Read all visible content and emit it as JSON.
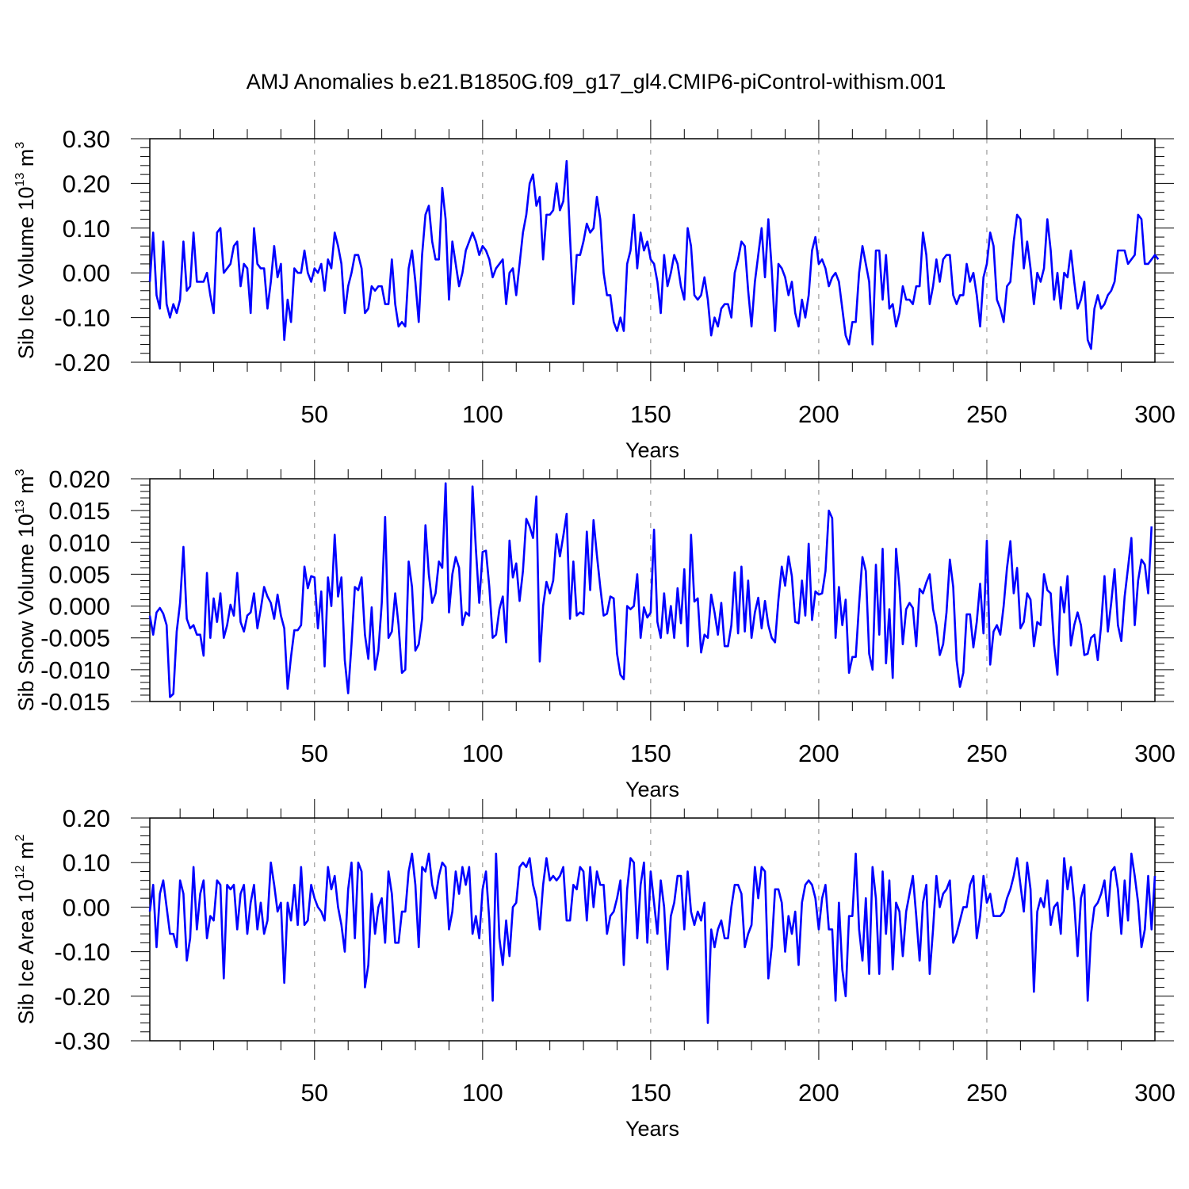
{
  "title": "AMJ Anomalies b.e21.B1850G.f09_g17_gl4.CMIP6-piControl-withism.001",
  "colors": {
    "series": "#0000ff",
    "axis": "#000000",
    "grid": "#888888"
  },
  "chart_data": [
    {
      "type": "line",
      "name": "ice-volume",
      "ylabel": {
        "prefix": "Sib Ice Volume 10",
        "exp1": "13",
        "mid": " m",
        "exp2": "3"
      },
      "xlabel": "Years",
      "xlim": [
        1,
        300
      ],
      "ylim": [
        -0.2,
        0.3
      ],
      "xticks": [
        50,
        100,
        150,
        200,
        250,
        300
      ],
      "xtick_labels": [
        "50",
        "100",
        "150",
        "200",
        "250",
        "300"
      ],
      "yticks": [
        -0.2,
        -0.1,
        0.0,
        0.1,
        0.2,
        0.3
      ],
      "ytick_labels": [
        "-0.20",
        "-0.10",
        "0.00",
        "0.10",
        "0.20",
        "0.30"
      ],
      "grid": "vertical-dashed",
      "x_start": 1,
      "values": [
        -0.02,
        0.09,
        -0.05,
        -0.08,
        0.07,
        -0.07,
        -0.1,
        -0.07,
        -0.09,
        -0.06,
        0.07,
        -0.04,
        -0.03,
        0.09,
        -0.02,
        -0.02,
        -0.02,
        0.0,
        -0.05,
        -0.09,
        0.09,
        0.1,
        0.0,
        0.01,
        0.02,
        0.06,
        0.07,
        -0.03,
        0.02,
        0.01,
        -0.09,
        0.1,
        0.02,
        0.01,
        0.01,
        -0.08,
        -0.02,
        0.06,
        -0.01,
        0.02,
        -0.15,
        -0.06,
        -0.11,
        0.01,
        0.0,
        0.0,
        0.05,
        0.0,
        -0.02,
        0.01,
        0.0,
        0.02,
        -0.04,
        0.03,
        0.01,
        0.09,
        0.06,
        0.02,
        -0.09,
        -0.03,
        0.0,
        0.04,
        0.04,
        0.01,
        -0.09,
        -0.08,
        -0.03,
        -0.04,
        -0.03,
        -0.03,
        -0.07,
        -0.07,
        0.03,
        -0.07,
        -0.12,
        -0.11,
        -0.12,
        0.01,
        0.05,
        -0.02,
        -0.11,
        0.04,
        0.13,
        0.15,
        0.07,
        0.03,
        0.03,
        0.19,
        0.12,
        -0.06,
        0.07,
        0.02,
        -0.03,
        0.0,
        0.05,
        0.07,
        0.09,
        0.07,
        0.04,
        0.06,
        0.05,
        0.03,
        -0.01,
        0.01,
        0.02,
        0.03,
        -0.07,
        0.0,
        0.01,
        -0.05,
        0.02,
        0.09,
        0.13,
        0.2,
        0.22,
        0.15,
        0.17,
        0.03,
        0.13,
        0.13,
        0.14,
        0.2,
        0.14,
        0.16,
        0.25,
        0.08,
        -0.07,
        0.04,
        0.04,
        0.07,
        0.11,
        0.09,
        0.1,
        0.17,
        0.12,
        0.0,
        -0.05,
        -0.05,
        -0.11,
        -0.13,
        -0.1,
        -0.13,
        0.02,
        0.05,
        0.13,
        0.01,
        0.09,
        0.05,
        0.07,
        0.03,
        0.02,
        -0.02,
        -0.09,
        0.04,
        -0.03,
        0.0,
        0.04,
        0.02,
        -0.03,
        -0.06,
        0.1,
        0.06,
        -0.05,
        -0.06,
        -0.05,
        -0.01,
        -0.06,
        -0.14,
        -0.1,
        -0.12,
        -0.08,
        -0.07,
        -0.07,
        -0.1,
        0.0,
        0.03,
        0.07,
        0.06,
        -0.04,
        -0.12,
        -0.02,
        0.04,
        0.1,
        -0.01,
        0.12,
        0.01,
        -0.13,
        0.02,
        0.01,
        -0.01,
        -0.05,
        -0.02,
        -0.09,
        -0.12,
        -0.06,
        -0.1,
        -0.05,
        0.05,
        0.08,
        0.02,
        0.03,
        0.01,
        -0.03,
        -0.01,
        0.0,
        -0.02,
        -0.08,
        -0.14,
        -0.16,
        -0.11,
        -0.11,
        0.0,
        0.06,
        0.02,
        -0.02,
        -0.16,
        0.05,
        0.05,
        -0.06,
        0.04,
        -0.08,
        -0.07,
        -0.12,
        -0.09,
        -0.03,
        -0.06,
        -0.06,
        -0.07,
        -0.03,
        -0.03,
        0.09,
        0.04,
        -0.07,
        -0.03,
        0.03,
        -0.02,
        0.03,
        0.04,
        0.04,
        -0.05,
        -0.07,
        -0.05,
        -0.05,
        0.02,
        -0.02,
        0.0,
        -0.05,
        -0.12,
        -0.01,
        0.02,
        0.09,
        0.06,
        -0.06,
        -0.08,
        -0.11,
        -0.03,
        -0.02,
        0.07,
        0.13,
        0.12,
        0.01,
        0.07,
        0.01,
        -0.07,
        0.0,
        -0.02,
        0.01,
        0.12,
        0.05,
        -0.06,
        0.0,
        -0.08,
        0.0,
        -0.01,
        0.05,
        -0.02,
        -0.08,
        -0.06,
        -0.02,
        -0.15,
        -0.17,
        -0.08,
        -0.05,
        -0.08,
        -0.07,
        -0.05,
        -0.04,
        -0.02,
        0.05,
        0.05,
        0.05,
        0.02,
        0.03,
        0.04,
        0.13,
        0.12,
        0.02,
        0.02,
        0.03,
        0.04,
        0.03
      ]
    },
    {
      "type": "line",
      "name": "snow-volume",
      "ylabel": {
        "prefix": "Sib Snow Volume 10",
        "exp1": "13",
        "mid": " m",
        "exp2": "3"
      },
      "xlabel": "Years",
      "xlim": [
        1,
        300
      ],
      "ylim": [
        -0.015,
        0.02
      ],
      "xticks": [
        50,
        100,
        150,
        200,
        250,
        300
      ],
      "xtick_labels": [
        "50",
        "100",
        "150",
        "200",
        "250",
        "300"
      ],
      "yticks": [
        -0.015,
        -0.01,
        -0.005,
        0.0,
        0.005,
        0.01,
        0.015,
        0.02
      ],
      "ytick_labels": [
        "-0.015",
        "-0.010",
        "-0.005",
        "0.000",
        "0.005",
        "0.010",
        "0.015",
        "0.020"
      ],
      "grid": "vertical-dashed",
      "x_start": 1,
      "values": [
        -0.0015,
        -0.0045,
        -0.001,
        -0.0003,
        -0.0012,
        -0.003,
        -0.0143,
        -0.0138,
        -0.004,
        0.0005,
        0.0093,
        -0.002,
        -0.0035,
        -0.003,
        -0.0045,
        -0.0045,
        -0.0078,
        0.0052,
        -0.005,
        0.0012,
        -0.0025,
        0.002,
        -0.005,
        -0.003,
        0.0002,
        -0.0015,
        0.0052,
        -0.0025,
        -0.004,
        -0.0015,
        -0.001,
        0.002,
        -0.0035,
        -0.0005,
        0.003,
        0.0015,
        0.0005,
        -0.002,
        0.0018,
        -0.0015,
        -0.0035,
        -0.013,
        -0.008,
        -0.0038,
        -0.0038,
        -0.003,
        0.0062,
        0.0028,
        0.0047,
        0.0045,
        -0.0035,
        0.0023,
        -0.0095,
        0.0045,
        0.0,
        0.0112,
        0.0015,
        0.0045,
        -0.0085,
        -0.0137,
        -0.006,
        0.003,
        0.0025,
        0.0045,
        -0.0045,
        -0.0083,
        -0.0002,
        -0.01,
        -0.007,
        0.0005,
        0.014,
        -0.005,
        -0.004,
        0.002,
        -0.003,
        -0.0105,
        -0.01,
        0.007,
        0.003,
        -0.007,
        -0.006,
        -0.002,
        0.0127,
        0.005,
        0.0005,
        0.002,
        0.007,
        0.006,
        0.0193,
        -0.001,
        0.005,
        0.0077,
        0.006,
        -0.003,
        -0.001,
        -0.0015,
        0.0188,
        0.009,
        0.0005,
        0.0085,
        0.0087,
        0.003,
        -0.005,
        -0.0045,
        -0.0005,
        0.0015,
        -0.0057,
        0.0103,
        0.0045,
        0.0067,
        0.0008,
        0.0055,
        0.0137,
        0.0125,
        0.0107,
        0.0172,
        -0.0087,
        0.0,
        0.0038,
        0.002,
        0.004,
        0.0113,
        0.0078,
        0.011,
        0.0145,
        -0.002,
        0.007,
        -0.0015,
        -0.001,
        -0.0013,
        0.0117,
        0.0025,
        0.0135,
        0.008,
        0.003,
        -0.0015,
        -0.0012,
        0.0015,
        0.0012,
        -0.0075,
        -0.0108,
        -0.0115,
        0.0,
        -0.0005,
        0.0,
        0.005,
        -0.005,
        -0.0002,
        -0.0018,
        -0.001,
        0.012,
        -0.0025,
        -0.005,
        0.002,
        -0.0043,
        0.0,
        -0.005,
        0.0028,
        -0.0027,
        0.0058,
        -0.0063,
        0.0112,
        0.0007,
        0.0012,
        -0.0073,
        -0.0045,
        -0.005,
        0.0018,
        -0.001,
        -0.0045,
        0.0005,
        -0.0063,
        -0.0063,
        -0.003,
        0.0053,
        -0.0043,
        0.0062,
        -0.004,
        0.004,
        -0.005,
        -0.001,
        0.0013,
        -0.0035,
        0.0008,
        -0.003,
        -0.005,
        -0.0057,
        0.001,
        0.0062,
        0.0032,
        0.0078,
        0.0047,
        -0.0025,
        -0.0027,
        0.004,
        -0.0015,
        0.0098,
        -0.0022,
        0.0023,
        0.0018,
        0.002,
        0.0055,
        0.015,
        0.0138,
        -0.005,
        0.003,
        -0.003,
        0.001,
        -0.0105,
        -0.008,
        -0.008,
        0.0003,
        0.0077,
        0.0055,
        -0.0075,
        -0.01,
        0.0065,
        -0.0045,
        0.009,
        -0.009,
        -0.0005,
        -0.0113,
        0.009,
        0.003,
        -0.006,
        -0.0005,
        0.0005,
        -0.0003,
        -0.0063,
        0.0027,
        0.002,
        0.0037,
        0.005,
        -0.0005,
        -0.003,
        -0.0077,
        -0.006,
        -0.001,
        0.0073,
        0.003,
        -0.0085,
        -0.0127,
        -0.0105,
        -0.0013,
        -0.0013,
        -0.0065,
        -0.0025,
        0.0035,
        -0.0043,
        0.0103,
        -0.0092,
        -0.004,
        -0.003,
        -0.0045,
        0.0,
        0.006,
        0.0102,
        0.002,
        0.006,
        -0.0035,
        -0.0025,
        0.002,
        0.001,
        -0.0063,
        -0.0025,
        -0.003,
        0.005,
        0.0025,
        0.002,
        -0.006,
        -0.0108,
        0.003,
        -0.001,
        0.0047,
        -0.0062,
        -0.003,
        -0.001,
        -0.003,
        -0.0077,
        -0.0075,
        -0.005,
        -0.0045,
        -0.0085,
        -0.003,
        0.0047,
        -0.004,
        0.0005,
        0.0058,
        -0.003,
        -0.0055,
        0.0015,
        0.006,
        0.0107,
        -0.003,
        0.004,
        0.0073,
        0.0065,
        0.002,
        0.0125
      ]
    },
    {
      "type": "line",
      "name": "ice-area",
      "ylabel": {
        "prefix": "Sib Ice Area 10",
        "exp1": "12",
        "mid": " m",
        "exp2": "2"
      },
      "xlabel": "Years",
      "xlim": [
        1,
        300
      ],
      "ylim": [
        -0.3,
        0.2
      ],
      "xticks": [
        50,
        100,
        150,
        200,
        250,
        300
      ],
      "xtick_labels": [
        "50",
        "100",
        "150",
        "200",
        "250",
        "300"
      ],
      "yticks": [
        -0.3,
        -0.2,
        -0.1,
        0.0,
        0.1,
        0.2
      ],
      "ytick_labels": [
        "-0.30",
        "-0.20",
        "-0.10",
        "0.00",
        "0.10",
        "0.20"
      ],
      "grid": "vertical-dashed",
      "x_start": 1,
      "values": [
        -0.01,
        0.05,
        -0.09,
        0.03,
        0.06,
        0.0,
        -0.06,
        -0.06,
        -0.09,
        0.06,
        0.03,
        -0.12,
        -0.07,
        0.09,
        -0.05,
        0.03,
        0.06,
        -0.07,
        -0.02,
        -0.03,
        0.06,
        0.05,
        -0.16,
        0.05,
        0.04,
        0.05,
        -0.05,
        0.03,
        0.05,
        -0.06,
        0.01,
        0.05,
        -0.05,
        0.01,
        -0.06,
        -0.03,
        0.1,
        0.05,
        -0.01,
        0.01,
        -0.17,
        0.01,
        -0.03,
        0.05,
        -0.04,
        0.09,
        -0.04,
        -0.03,
        0.05,
        0.02,
        0.0,
        -0.01,
        -0.03,
        0.09,
        0.04,
        0.07,
        0.0,
        -0.04,
        -0.1,
        0.04,
        0.1,
        -0.07,
        0.1,
        0.08,
        -0.18,
        -0.13,
        0.03,
        -0.06,
        0.0,
        0.02,
        -0.08,
        0.08,
        0.03,
        -0.08,
        -0.08,
        -0.01,
        -0.01,
        0.08,
        0.12,
        0.05,
        -0.09,
        0.09,
        0.08,
        0.12,
        0.05,
        0.02,
        0.07,
        0.1,
        0.09,
        -0.05,
        -0.01,
        0.08,
        0.03,
        0.09,
        0.05,
        0.09,
        -0.06,
        -0.02,
        -0.07,
        0.04,
        0.08,
        -0.03,
        -0.21,
        0.12,
        -0.07,
        -0.13,
        -0.03,
        -0.11,
        0.0,
        0.01,
        0.09,
        0.1,
        0.09,
        0.11,
        0.05,
        0.02,
        -0.05,
        0.05,
        0.11,
        0.06,
        0.07,
        0.06,
        0.07,
        0.09,
        -0.03,
        -0.03,
        0.05,
        0.04,
        0.09,
        0.08,
        -0.03,
        0.09,
        0.0,
        0.08,
        0.05,
        0.05,
        -0.06,
        -0.02,
        -0.01,
        0.02,
        0.06,
        -0.13,
        0.04,
        0.11,
        0.1,
        -0.07,
        0.05,
        0.1,
        -0.08,
        0.08,
        0.01,
        -0.06,
        0.06,
        0.0,
        -0.14,
        -0.02,
        0.01,
        0.07,
        0.07,
        -0.05,
        0.08,
        -0.01,
        -0.04,
        -0.01,
        -0.03,
        0.01,
        -0.26,
        -0.05,
        -0.09,
        -0.05,
        -0.03,
        -0.07,
        -0.07,
        0.0,
        0.05,
        0.05,
        0.03,
        -0.09,
        -0.06,
        -0.04,
        0.09,
        0.02,
        0.09,
        0.08,
        -0.16,
        -0.09,
        0.04,
        0.04,
        0.01,
        -0.1,
        -0.02,
        -0.06,
        -0.01,
        -0.13,
        0.01,
        0.05,
        0.06,
        0.05,
        0.02,
        -0.05,
        0.02,
        0.05,
        -0.05,
        -0.05,
        -0.21,
        0.01,
        -0.14,
        -0.2,
        -0.02,
        -0.02,
        0.12,
        -0.05,
        -0.12,
        0.02,
        -0.15,
        0.09,
        0.02,
        -0.15,
        0.08,
        -0.06,
        0.06,
        -0.14,
        0.01,
        -0.01,
        -0.11,
        -0.01,
        0.03,
        0.07,
        -0.02,
        -0.12,
        0.01,
        0.05,
        -0.15,
        -0.05,
        0.07,
        0.0,
        0.03,
        0.04,
        0.06,
        -0.08,
        -0.06,
        -0.03,
        0.0,
        0.0,
        0.05,
        0.07,
        -0.07,
        -0.02,
        0.07,
        0.01,
        0.03,
        -0.02,
        -0.02,
        -0.02,
        -0.01,
        0.02,
        0.04,
        0.07,
        0.11,
        0.05,
        -0.01,
        0.1,
        0.04,
        -0.19,
        -0.01,
        0.02,
        0.0,
        0.06,
        -0.04,
        0.0,
        0.01,
        -0.06,
        0.11,
        0.04,
        0.09,
        0.01,
        -0.11,
        0.02,
        0.05,
        -0.21,
        -0.06,
        0.0,
        0.01,
        0.03,
        0.06,
        -0.02,
        0.08,
        0.09,
        0.04,
        -0.06,
        0.06,
        -0.03,
        0.12,
        0.07,
        0.01,
        -0.09,
        -0.05,
        0.07,
        -0.05,
        0.07
      ]
    }
  ]
}
